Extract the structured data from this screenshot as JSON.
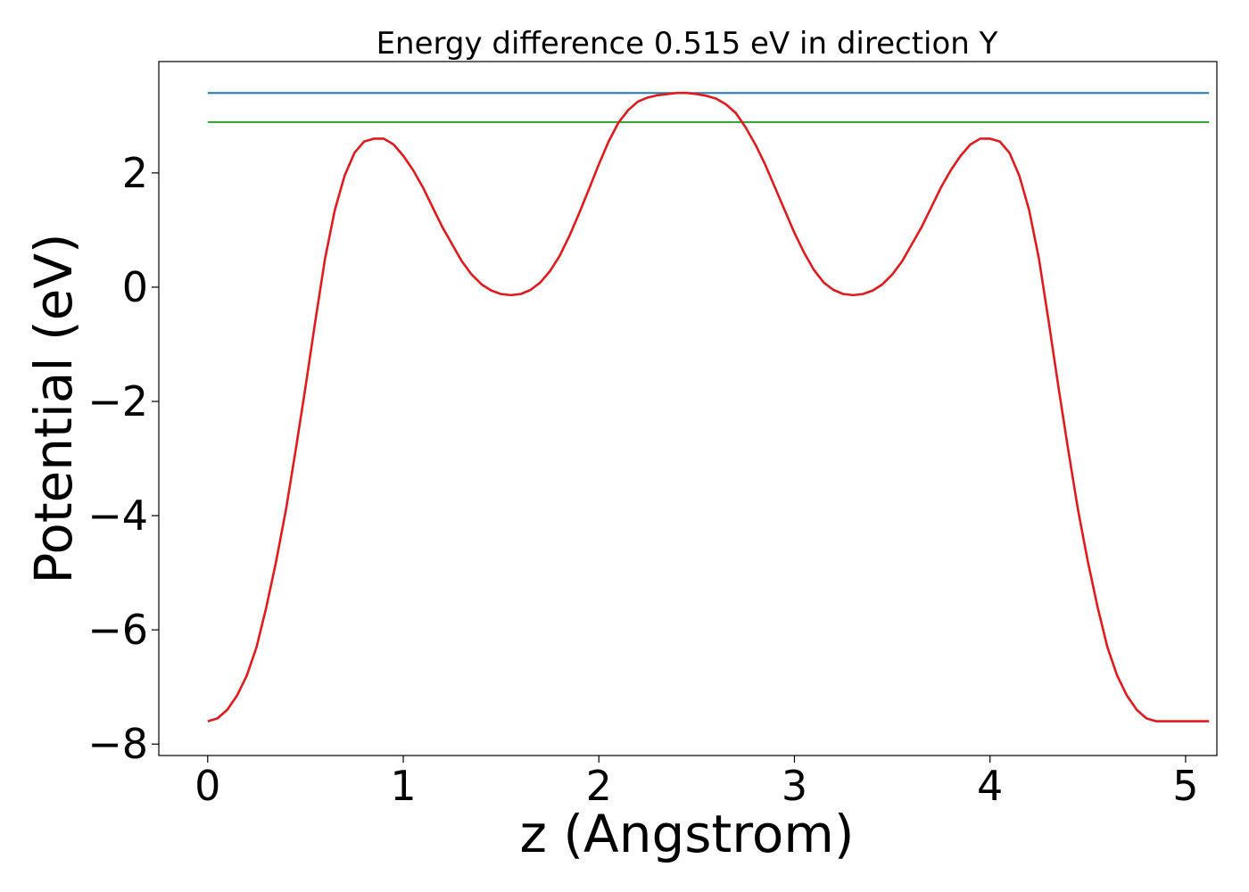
{
  "chart_data": {
    "type": "line",
    "title": "Energy difference 0.515 eV in direction Y",
    "xlabel": "z (Angstrom)",
    "ylabel": "Potential (eV)",
    "xlim": [
      -0.25,
      5.16
    ],
    "ylim": [
      -8.2,
      3.95
    ],
    "xticks": [
      0,
      1,
      2,
      3,
      4,
      5
    ],
    "yticks": [
      -8,
      -6,
      -4,
      -2,
      0,
      2
    ],
    "xtick_labels": [
      "0",
      "1",
      "2",
      "3",
      "4",
      "5"
    ],
    "ytick_labels": [
      "−8",
      "−6",
      "−4",
      "−2",
      "0",
      "2"
    ],
    "grid": false,
    "series": [
      {
        "color": "#1f77b4",
        "kind": "horizontal",
        "x": [
          0,
          5.12
        ],
        "y": [
          3.4,
          3.4
        ]
      },
      {
        "color": "#2ca02c",
        "kind": "horizontal",
        "x": [
          0,
          5.12
        ],
        "y": [
          2.89,
          2.89
        ]
      },
      {
        "color": "#e31a1c",
        "kind": "curve",
        "x": [
          0,
          0.05,
          0.1,
          0.15,
          0.2,
          0.25,
          0.3,
          0.35,
          0.4,
          0.45,
          0.5,
          0.55,
          0.6,
          0.65,
          0.7,
          0.75,
          0.8,
          0.85,
          0.9,
          0.95,
          1.0,
          1.05,
          1.1,
          1.15,
          1.2,
          1.25,
          1.3,
          1.35,
          1.4,
          1.45,
          1.5,
          1.55,
          1.6,
          1.65,
          1.7,
          1.75,
          1.8,
          1.85,
          1.9,
          1.95,
          2.0,
          2.05,
          2.1,
          2.15,
          2.2,
          2.25,
          2.3,
          2.35,
          2.4,
          2.45,
          2.5,
          2.55,
          2.6,
          2.65,
          2.7,
          2.75,
          2.8,
          2.85,
          2.9,
          2.95,
          3.0,
          3.05,
          3.1,
          3.15,
          3.2,
          3.25,
          3.3,
          3.35,
          3.4,
          3.45,
          3.5,
          3.55,
          3.6,
          3.65,
          3.7,
          3.75,
          3.8,
          3.85,
          3.9,
          3.95,
          4.0,
          4.05,
          4.1,
          4.15,
          4.2,
          4.25,
          4.3,
          4.35,
          4.4,
          4.45,
          4.5,
          4.55,
          4.6,
          4.65,
          4.7,
          4.75,
          4.8,
          4.85,
          4.9,
          4.95,
          5.0,
          5.05,
          5.1,
          5.12
        ],
        "y": [
          -7.6,
          -7.55,
          -7.4,
          -7.15,
          -6.8,
          -6.3,
          -5.6,
          -4.8,
          -3.9,
          -2.85,
          -1.75,
          -0.6,
          0.5,
          1.35,
          1.95,
          2.35,
          2.55,
          2.6,
          2.6,
          2.5,
          2.3,
          2.05,
          1.75,
          1.4,
          1.05,
          0.75,
          0.45,
          0.22,
          0.05,
          -0.06,
          -0.12,
          -0.14,
          -0.12,
          -0.05,
          0.08,
          0.28,
          0.55,
          0.9,
          1.3,
          1.72,
          2.15,
          2.55,
          2.88,
          3.1,
          3.25,
          3.32,
          3.36,
          3.38,
          3.4,
          3.4,
          3.38,
          3.35,
          3.3,
          3.2,
          3.05,
          2.8,
          2.5,
          2.15,
          1.75,
          1.35,
          0.95,
          0.6,
          0.3,
          0.08,
          -0.05,
          -0.12,
          -0.14,
          -0.12,
          -0.06,
          0.05,
          0.22,
          0.45,
          0.75,
          1.05,
          1.4,
          1.75,
          2.05,
          2.3,
          2.5,
          2.6,
          2.6,
          2.55,
          2.35,
          1.95,
          1.35,
          0.5,
          -0.6,
          -1.75,
          -2.85,
          -3.9,
          -4.8,
          -5.6,
          -6.3,
          -6.8,
          -7.15,
          -7.4,
          -7.55,
          -7.6,
          -7.6,
          -7.6,
          -7.6,
          -7.6,
          -7.6,
          -7.6
        ]
      }
    ]
  }
}
